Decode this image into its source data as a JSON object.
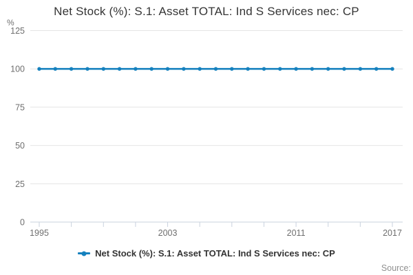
{
  "header": {
    "title": "Net Stock (%): S.1: Asset TOTAL: Ind S Services nec: CP"
  },
  "chart_data": {
    "type": "line",
    "title": "Net Stock (%): S.1: Asset TOTAL: Ind S Services nec: CP",
    "ylabel": "%",
    "x": [
      1995,
      1996,
      1997,
      1998,
      1999,
      2000,
      2001,
      2002,
      2003,
      2004,
      2005,
      2006,
      2007,
      2008,
      2009,
      2010,
      2011,
      2012,
      2013,
      2014,
      2015,
      2016,
      2017
    ],
    "series": [
      {
        "name": "Net Stock (%): S.1: Asset TOTAL: Ind S Services nec: CP",
        "values": [
          100,
          100,
          100,
          100,
          100,
          100,
          100,
          100,
          100,
          100,
          100,
          100,
          100,
          100,
          100,
          100,
          100,
          100,
          100,
          100,
          100,
          100,
          100
        ],
        "color": "#1581BE"
      }
    ],
    "ylim": [
      0,
      125
    ],
    "yticks": [
      0,
      25,
      50,
      75,
      100,
      125
    ],
    "xtick_mark_step_years": 2,
    "xtick_labels": [
      "1995",
      "2003",
      "2011",
      "2017"
    ],
    "grid": true,
    "legend_position": "bottom"
  },
  "legend": {
    "label": "Net Stock (%): S.1: Asset TOTAL: Ind S Services nec: CP"
  },
  "footer": {
    "source_label": "Source:"
  },
  "colors": {
    "series_blue": "#1581BE",
    "gridline": "#e4e4e4",
    "axis": "#c9d2de",
    "tick_text": "#6e6e6e",
    "title_text": "#343434",
    "source_text": "#8f8f8f"
  }
}
